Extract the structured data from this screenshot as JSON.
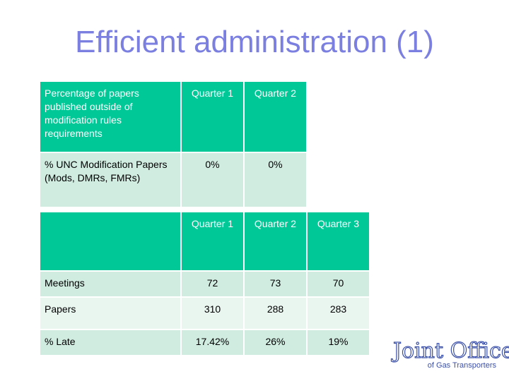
{
  "title": "Efficient administration (1)",
  "table1": {
    "header": [
      "Percentage of papers published outside of modification rules requirements",
      "Quarter 1",
      "Quarter 2"
    ],
    "rows": [
      [
        "% UNC Modification Papers (Mods, DMRs, FMRs)",
        "0%",
        "0%"
      ]
    ]
  },
  "table2": {
    "header": [
      "",
      "Quarter 1",
      "Quarter 2",
      "Quarter 3"
    ],
    "rows": [
      [
        "Meetings",
        "72",
        "73",
        "70"
      ],
      [
        "Papers",
        "310",
        "288",
        "283"
      ],
      [
        "% Late",
        "17.42%",
        "26%",
        "19%"
      ]
    ]
  },
  "logo": {
    "main": "Joint Office",
    "sub": "of Gas Transporters"
  },
  "colors": {
    "title": "#7b7fe0",
    "header_bg": "#00c896",
    "row_dark": "#d0ece1",
    "row_light": "#e9f6f0",
    "logo": "#3a4fa8"
  }
}
